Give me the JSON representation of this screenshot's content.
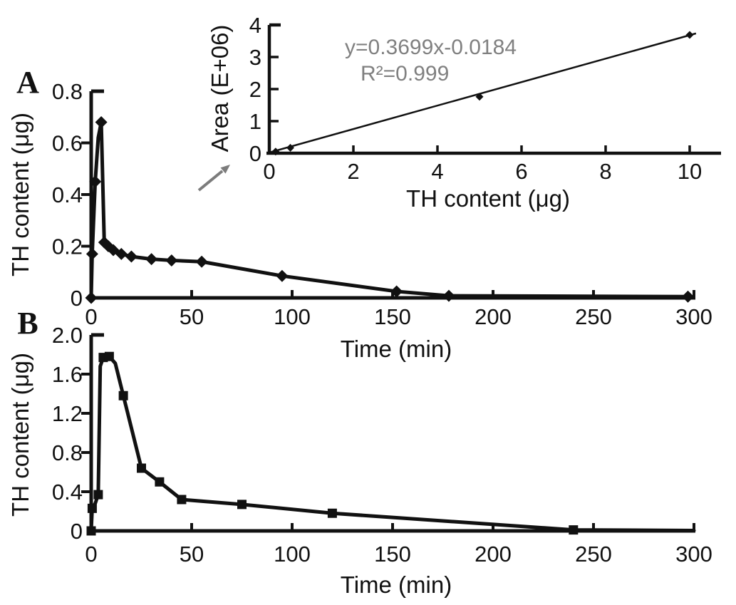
{
  "figure": {
    "background": "#ffffff",
    "colors": {
      "line": "#111111",
      "axis": "#111111",
      "equation_text": "#808080",
      "arrow": "#7c7c7c"
    },
    "annotations": {
      "arrow_to_inset": "gray arrow pointing from panel A toward inset"
    }
  },
  "chart_data": [
    {
      "id": "panel_A",
      "type": "line",
      "panel_label": "A",
      "xlabel": "Time (min)",
      "ylabel": "TH content (μg)",
      "xlim": [
        0,
        300
      ],
      "ylim": [
        0,
        0.8
      ],
      "xticks": [
        0,
        50,
        100,
        150,
        200,
        250,
        300
      ],
      "xtick_labels": [
        "0",
        "50",
        "100",
        "150",
        "200",
        "250",
        "300"
      ],
      "yticks": [
        0,
        0.2,
        0.4,
        0.6,
        0.8
      ],
      "ytick_labels": [
        "0",
        "0.2",
        "0.4",
        "0.6",
        "0.8"
      ],
      "marker": "diamond",
      "x": [
        0,
        0.5,
        2,
        3.5,
        5,
        6.5,
        8.5,
        11,
        15,
        20,
        30,
        40,
        55,
        95,
        152,
        178,
        297
      ],
      "y": [
        0,
        0.17,
        0.45,
        0.62,
        0.68,
        0.215,
        0.2,
        0.185,
        0.17,
        0.16,
        0.15,
        0.145,
        0.14,
        0.085,
        0.025,
        0.008,
        0.005
      ],
      "marker_at": [
        true,
        true,
        true,
        false,
        true,
        true,
        true,
        true,
        true,
        true,
        true,
        true,
        true,
        true,
        true,
        true,
        true
      ]
    },
    {
      "id": "panel_B",
      "type": "line",
      "panel_label": "B",
      "xlabel": "Time (min)",
      "ylabel": "TH content (μg)",
      "xlim": [
        0,
        300
      ],
      "ylim": [
        0,
        2.0
      ],
      "xticks": [
        0,
        50,
        100,
        150,
        200,
        250,
        300
      ],
      "xtick_labels": [
        "0",
        "50",
        "100",
        "150",
        "200",
        "250",
        "300"
      ],
      "yticks": [
        0,
        0.4,
        0.8,
        1.2,
        1.6,
        2.0
      ],
      "ytick_labels": [
        "0",
        "0.4",
        "0.8",
        "1.2",
        "1.6",
        "2.0"
      ],
      "marker": "square",
      "x": [
        0,
        0.5,
        2,
        3.5,
        4.5,
        6,
        9,
        12,
        16,
        25,
        34,
        45,
        75,
        120,
        240,
        300
      ],
      "y": [
        0,
        0.23,
        0.28,
        0.37,
        1.68,
        1.77,
        1.78,
        1.71,
        1.38,
        0.64,
        0.5,
        0.32,
        0.27,
        0.18,
        0.01,
        0.004
      ],
      "marker_at": [
        true,
        true,
        false,
        true,
        false,
        true,
        true,
        false,
        true,
        true,
        true,
        true,
        true,
        true,
        true,
        false
      ]
    },
    {
      "id": "inset",
      "type": "scatter",
      "xlabel": "TH content (μg)",
      "ylabel": "Area (E+06)",
      "xlim": [
        0,
        11
      ],
      "ylim": [
        0,
        4
      ],
      "xticks": [
        0,
        2,
        4,
        6,
        8,
        10
      ],
      "xtick_labels": [
        "0",
        "2",
        "4",
        "6",
        "8",
        "10"
      ],
      "yticks": [
        0,
        1,
        2,
        3,
        4
      ],
      "ytick_labels": [
        "0",
        "1",
        "2",
        "3",
        "4"
      ],
      "marker": "diamond",
      "points_x": [
        0.15,
        0.5,
        5,
        10
      ],
      "points_y": [
        0.05,
        0.17,
        1.76,
        3.69
      ],
      "equation": "y=0.3699x-0.0184",
      "r_squared": "R²=0.999",
      "trendline": {
        "slope": 0.3699,
        "intercept": -0.0184,
        "x_start": 0,
        "x_end": 10.15
      }
    }
  ]
}
